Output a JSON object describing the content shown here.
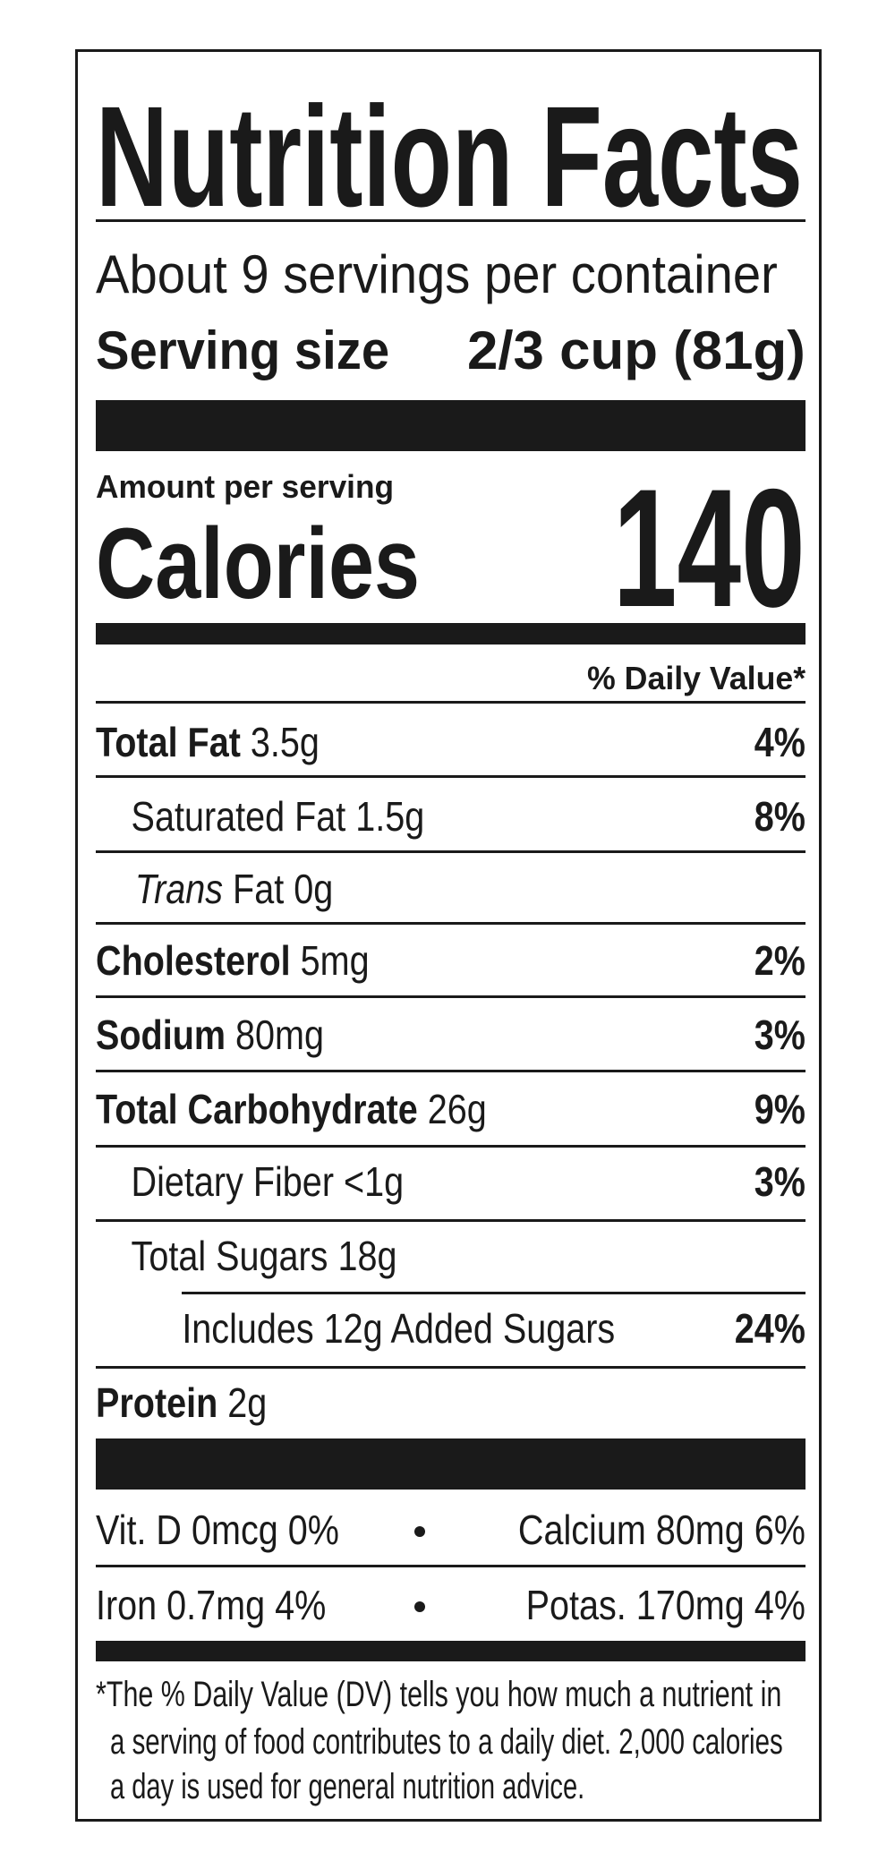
{
  "title": "Nutrition Facts",
  "servings_per_container": "About 9 servings per container",
  "serving_size": {
    "label": "Serving size",
    "value": "2/3 cup (81g)"
  },
  "calories": {
    "amount_label": "Amount per serving",
    "label": "Calories",
    "value": "140"
  },
  "daily_value_header": "% Daily Value*",
  "nutrients": [
    {
      "name": "Total Fat",
      "amount": "3.5g",
      "dv": "4%"
    },
    {
      "name": "Saturated Fat",
      "amount": "1.5g",
      "dv": "8%"
    },
    {
      "name": "Trans",
      "name_suffix": "Fat",
      "amount": "0g",
      "dv": ""
    },
    {
      "name": "Cholesterol",
      "amount": "5mg",
      "dv": "2%"
    },
    {
      "name": "Sodium",
      "amount": "80mg",
      "dv": "3%"
    },
    {
      "name": "Total Carbohydrate",
      "amount": "26g",
      "dv": "9%"
    },
    {
      "name": "Dietary Fiber",
      "amount": "<1g",
      "dv": "3%"
    },
    {
      "name": "Total Sugars",
      "amount": "18g",
      "dv": ""
    },
    {
      "name": "Includes 12g Added Sugars",
      "amount": "",
      "dv": "24%"
    },
    {
      "name": "Protein",
      "amount": "2g",
      "dv": ""
    }
  ],
  "micronutrients": [
    {
      "left": "Vit. D 0mcg 0%",
      "right": "Calcium 80mg 6%"
    },
    {
      "left": "Iron 0.7mg 4%",
      "right": "Potas. 170mg 4%"
    }
  ],
  "footnote": [
    "*The % Daily Value (DV) tells you how much a nutrient in",
    "a serving of food contributes to a daily diet. 2,000 calories",
    "a day is used for general nutrition advice."
  ]
}
